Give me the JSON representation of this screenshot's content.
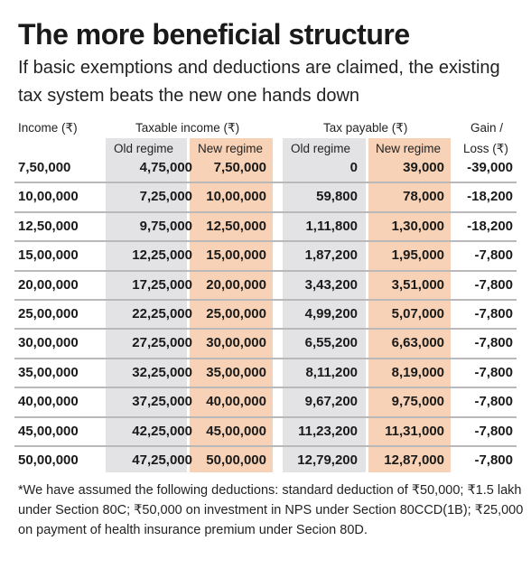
{
  "title": "The more beneficial structure",
  "subtitle": "If basic exemptions and deductions are claimed, the existing tax system beats the new one hands down",
  "headers": {
    "income": "Income (₹)",
    "taxable_income": "Taxable income (₹)",
    "tax_payable": "Tax payable (₹)",
    "gain_loss_line1": "Gain /",
    "gain_loss_line2": "Loss (₹)",
    "old_regime": "Old regime",
    "new_regime": "New regime"
  },
  "colors": {
    "old_regime_column": "#e3e3e5",
    "new_regime_column": "#f8d2b6",
    "separator": "#b9b9b9"
  },
  "rows": [
    {
      "income": "7,50,000",
      "taxable_old": "4,75,000",
      "taxable_new": "7,50,000",
      "tax_old": "0",
      "tax_new": "39,000",
      "gain_loss": "-39,000"
    },
    {
      "income": "10,00,000",
      "taxable_old": "7,25,000",
      "taxable_new": "10,00,000",
      "tax_old": "59,800",
      "tax_new": "78,000",
      "gain_loss": "-18,200"
    },
    {
      "income": "12,50,000",
      "taxable_old": "9,75,000",
      "taxable_new": "12,50,000",
      "tax_old": "1,11,800",
      "tax_new": "1,30,000",
      "gain_loss": "-18,200"
    },
    {
      "income": "15,00,000",
      "taxable_old": "12,25,000",
      "taxable_new": "15,00,000",
      "tax_old": "1,87,200",
      "tax_new": "1,95,000",
      "gain_loss": "-7,800"
    },
    {
      "income": "20,00,000",
      "taxable_old": "17,25,000",
      "taxable_new": "20,00,000",
      "tax_old": "3,43,200",
      "tax_new": "3,51,000",
      "gain_loss": "-7,800"
    },
    {
      "income": "25,00,000",
      "taxable_old": "22,25,000",
      "taxable_new": "25,00,000",
      "tax_old": "4,99,200",
      "tax_new": "5,07,000",
      "gain_loss": "-7,800"
    },
    {
      "income": "30,00,000",
      "taxable_old": "27,25,000",
      "taxable_new": "30,00,000",
      "tax_old": "6,55,200",
      "tax_new": "6,63,000",
      "gain_loss": "-7,800"
    },
    {
      "income": "35,00,000",
      "taxable_old": "32,25,000",
      "taxable_new": "35,00,000",
      "tax_old": "8,11,200",
      "tax_new": "8,19,000",
      "gain_loss": "-7,800"
    },
    {
      "income": "40,00,000",
      "taxable_old": "37,25,000",
      "taxable_new": "40,00,000",
      "tax_old": "9,67,200",
      "tax_new": "9,75,000",
      "gain_loss": "-7,800"
    },
    {
      "income": "45,00,000",
      "taxable_old": "42,25,000",
      "taxable_new": "45,00,000",
      "tax_old": "11,23,200",
      "tax_new": "11,31,000",
      "gain_loss": "-7,800"
    },
    {
      "income": "50,00,000",
      "taxable_old": "47,25,000",
      "taxable_new": "50,00,000",
      "tax_old": "12,79,200",
      "tax_new": "12,87,000",
      "gain_loss": "-7,800"
    }
  ],
  "footnote": "*We have assumed the following deductions: standard deduction of ₹50,000; ₹1.5 lakh under Section 80C; ₹50,000 on investment in NPS under Section 80CCD(1B); ₹25,000 on payment of health insurance premium under Secion 80D."
}
